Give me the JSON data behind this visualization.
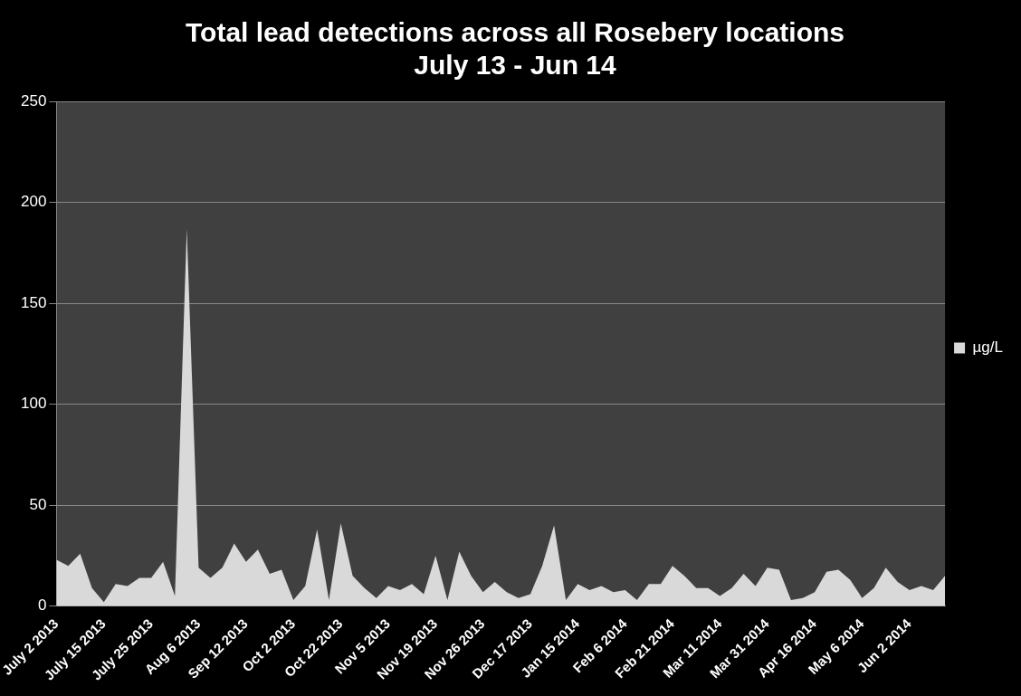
{
  "chart_data": {
    "type": "area",
    "title": "Total lead detections across all Rosebery locations",
    "subtitle": "July 13 - Jun 14",
    "categories": [
      "July 2 2013",
      null,
      null,
      null,
      "July 15 2013",
      null,
      null,
      null,
      "July 25 2013",
      null,
      null,
      null,
      "Aug 6 2013",
      null,
      null,
      null,
      "Sep 12 2013",
      null,
      null,
      null,
      "Oct 2 2013",
      null,
      null,
      null,
      "Oct 22 2013",
      null,
      null,
      null,
      "Nov 5 2013",
      null,
      null,
      null,
      "Nov 19 2013",
      null,
      null,
      null,
      "Nov 26 2013",
      null,
      null,
      null,
      "Dec 17 2013",
      null,
      null,
      null,
      "Jan 15 2014",
      null,
      null,
      null,
      "Feb 6 2014",
      null,
      null,
      null,
      "Feb 21 2014",
      null,
      null,
      null,
      "Mar 11 2014",
      null,
      null,
      null,
      "Mar 31 2014",
      null,
      null,
      null,
      "Apr 16 2014",
      null,
      null,
      null,
      "May 6 2014",
      null,
      null,
      null,
      "Jun 2 2014",
      null,
      null,
      null
    ],
    "series": [
      {
        "name": "µg/L",
        "color": "#d9d9d9",
        "values": [
          23,
          20,
          26,
          9,
          2,
          11,
          10,
          14,
          14,
          22,
          5,
          187,
          19,
          14,
          19,
          31,
          22,
          28,
          16,
          18,
          3,
          10,
          38,
          3,
          41,
          15,
          9,
          4,
          10,
          8,
          11,
          6,
          25,
          3,
          27,
          15,
          7,
          12,
          7,
          4,
          6,
          20,
          40,
          3,
          11,
          8,
          10,
          7,
          8,
          3,
          11,
          11,
          20,
          15,
          9,
          9,
          5,
          9,
          16,
          10,
          19,
          18,
          3,
          4,
          7,
          17,
          18,
          13,
          4,
          9,
          19,
          12,
          8,
          10,
          8,
          15
        ]
      }
    ],
    "ylim": [
      0,
      250
    ],
    "yticks": [
      0,
      50,
      100,
      150,
      200,
      250
    ],
    "grid": "y",
    "legend": "right"
  }
}
